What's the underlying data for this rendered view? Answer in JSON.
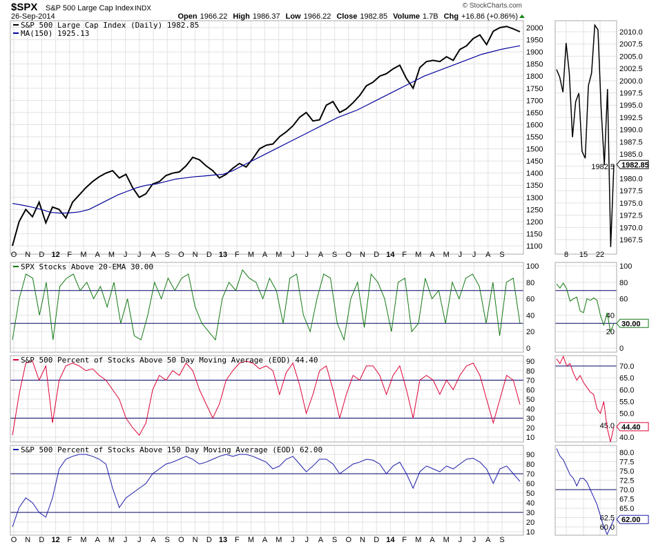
{
  "header": {
    "symbol": "$SPX",
    "name": "S&P 500 Large Cap Index",
    "exchange": "INDX",
    "date": "26-Sep-2014",
    "copyright": "© StockCharts.com",
    "open_label": "Open",
    "open": "1966.22",
    "high_label": "High",
    "high": "1986.37",
    "low_label": "Low",
    "low": "1966.22",
    "close_label": "Close",
    "close": "1982.85",
    "volume_label": "Volume",
    "volume": "1.7B",
    "chg_label": "Chg",
    "chg": "+16.86 (+0.86%)"
  },
  "colors": {
    "price": "#000000",
    "ma": "#000099",
    "ema20": "#117711",
    "pct50": "#dd0033",
    "pct150": "#1a1aaa",
    "ref_line": "#000066",
    "grid": "#e2e2e2"
  },
  "x_labels": [
    "O",
    "N",
    "D",
    "12",
    "F",
    "M",
    "A",
    "M",
    "J",
    "J",
    "A",
    "S",
    "O",
    "N",
    "D",
    "13",
    "F",
    "M",
    "A",
    "M",
    "J",
    "J",
    "A",
    "S",
    "O",
    "N",
    "D",
    "14",
    "F",
    "M",
    "A",
    "M",
    "J",
    "J",
    "A",
    "S"
  ],
  "zoom_x_labels": [
    "8",
    "15",
    "22"
  ],
  "chart_data": [
    {
      "type": "line",
      "legend": [
        "S&P 500 Large Cap Index (Daily) 1982.85",
        "MA(150) 1925.13"
      ],
      "y_ticks": [
        2000,
        1950,
        1900,
        1850,
        1800,
        1750,
        1700,
        1650,
        1600,
        1550,
        1500,
        1450,
        1400,
        1350,
        1300,
        1250,
        1200,
        1150,
        1100
      ],
      "ylim": [
        1100,
        2000
      ],
      "x_range": [
        "2011-10-03",
        "2014-09-26"
      ],
      "series": [
        {
          "name": "S&P 500 Large Cap Index (Daily)",
          "values": [
            1100,
            1200,
            1250,
            1220,
            1280,
            1195,
            1260,
            1250,
            1215,
            1280,
            1310,
            1340,
            1365,
            1385,
            1400,
            1410,
            1380,
            1395,
            1340,
            1300,
            1315,
            1355,
            1365,
            1390,
            1400,
            1405,
            1430,
            1465,
            1455,
            1430,
            1410,
            1380,
            1395,
            1420,
            1440,
            1425,
            1460,
            1500,
            1515,
            1520,
            1550,
            1570,
            1595,
            1630,
            1650,
            1615,
            1620,
            1680,
            1695,
            1650,
            1665,
            1690,
            1720,
            1760,
            1775,
            1800,
            1810,
            1830,
            1845,
            1790,
            1750,
            1835,
            1860,
            1865,
            1860,
            1880,
            1865,
            1910,
            1925,
            1955,
            1970,
            1930,
            1985,
            2000,
            2005,
            1995,
            1982.85
          ]
        },
        {
          "name": "MA(150)",
          "values": [
            1275,
            1268,
            1260,
            1250,
            1238,
            1235,
            1236,
            1240,
            1250,
            1270,
            1290,
            1310,
            1325,
            1340,
            1350,
            1355,
            1365,
            1375,
            1380,
            1385,
            1388,
            1392,
            1395,
            1410,
            1430,
            1450,
            1470,
            1490,
            1510,
            1530,
            1550,
            1570,
            1590,
            1610,
            1630,
            1645,
            1660,
            1680,
            1700,
            1720,
            1740,
            1760,
            1780,
            1800,
            1815,
            1830,
            1845,
            1860,
            1875,
            1890,
            1900,
            1910,
            1918,
            1925.13
          ]
        }
      ]
    },
    {
      "type": "line",
      "legend": [
        "SPX Stocks Above 20-EMA 30.00"
      ],
      "y_ticks": [
        100,
        80,
        60,
        40,
        20,
        0
      ],
      "ylim": [
        0,
        100
      ],
      "ref_lines": [
        70,
        30
      ],
      "series": [
        {
          "name": "SPX Stocks Above 20-EMA",
          "values": [
            10,
            60,
            90,
            85,
            40,
            80,
            10,
            75,
            85,
            90,
            70,
            80,
            60,
            75,
            50,
            80,
            30,
            60,
            15,
            10,
            40,
            80,
            60,
            85,
            70,
            85,
            90,
            50,
            30,
            20,
            10,
            60,
            80,
            70,
            95,
            85,
            80,
            60,
            85,
            70,
            30,
            85,
            90,
            40,
            20,
            60,
            90,
            85,
            30,
            10,
            60,
            80,
            25,
            90,
            80,
            60,
            20,
            80,
            85,
            20,
            30,
            85,
            60,
            70,
            30,
            80,
            60,
            85,
            90,
            75,
            30,
            80,
            15,
            80,
            85,
            30
          ]
        }
      ]
    },
    {
      "type": "line",
      "legend": [
        "S&P 500 Percent of Stocks Above 50 Day Moving Average (EOD) 44.40"
      ],
      "y_ticks": [
        90,
        80,
        70,
        60,
        50,
        40,
        30,
        20,
        10
      ],
      "ylim": [
        10,
        90
      ],
      "ref_lines": [
        70,
        30
      ],
      "series": [
        {
          "name": "S&P 500 Percent of Stocks Above 50 Day Moving Average (EOD)",
          "values": [
            12,
            55,
            88,
            90,
            70,
            85,
            25,
            70,
            85,
            88,
            85,
            80,
            82,
            75,
            70,
            60,
            50,
            30,
            20,
            12,
            25,
            60,
            75,
            70,
            80,
            75,
            88,
            80,
            60,
            45,
            30,
            45,
            70,
            80,
            88,
            90,
            88,
            82,
            85,
            80,
            55,
            78,
            88,
            65,
            35,
            55,
            80,
            85,
            60,
            30,
            55,
            75,
            70,
            85,
            85,
            75,
            55,
            75,
            85,
            60,
            30,
            70,
            75,
            70,
            55,
            70,
            60,
            75,
            85,
            88,
            75,
            50,
            25,
            50,
            75,
            70,
            44.4
          ]
        }
      ]
    },
    {
      "type": "line",
      "legend": [
        "S&P 500 Percent of Stocks Above 150 Day Moving Average (EOD) 62.00"
      ],
      "y_ticks": [
        90,
        80,
        70,
        60,
        50,
        40,
        30,
        20,
        10
      ],
      "ylim": [
        10,
        90
      ],
      "ref_lines": [
        70,
        30
      ],
      "series": [
        {
          "name": "S&P 500 Percent of Stocks Above 150 Day Moving Average (EOD)",
          "values": [
            15,
            35,
            45,
            40,
            30,
            25,
            45,
            75,
            85,
            88,
            90,
            90,
            88,
            85,
            80,
            55,
            35,
            45,
            50,
            55,
            60,
            70,
            75,
            80,
            82,
            85,
            88,
            85,
            80,
            82,
            85,
            88,
            90,
            88,
            90,
            90,
            88,
            85,
            82,
            75,
            78,
            85,
            88,
            80,
            72,
            78,
            85,
            85,
            80,
            70,
            75,
            80,
            82,
            85,
            84,
            80,
            70,
            78,
            82,
            70,
            55,
            72,
            78,
            75,
            72,
            78,
            75,
            80,
            85,
            86,
            82,
            75,
            60,
            75,
            78,
            70,
            62
          ]
        }
      ]
    },
    {
      "type": "line",
      "panel": "zoom-price",
      "y_ticks": [
        2010.0,
        2007.5,
        2005.0,
        2002.5,
        2000.0,
        1997.5,
        1995.0,
        1992.5,
        1990.0,
        1987.5,
        1985.0,
        1982.5,
        1980.0,
        1977.5,
        1975.0,
        1972.5,
        1970.0,
        1967.5
      ],
      "ylim": [
        1966,
        2012
      ],
      "last_label": "1982.85",
      "series": [
        {
          "values": [
            2002.28,
            2000.72,
            1997.65,
            2007.71,
            2001.54,
            1988.44,
            1995.69,
            1997.45,
            1985.54,
            1984.13,
            1998.98,
            2001.57,
            2011.36,
            2010.4,
            1994.29,
            1982.77,
            1998.3,
            1965.99,
            1982.85
          ]
        }
      ]
    },
    {
      "type": "line",
      "panel": "zoom-ema20",
      "y_ticks": [
        100,
        80,
        60,
        40,
        20,
        0
      ],
      "ylim": [
        0,
        100
      ],
      "ref_lines": [
        70,
        30
      ],
      "last_label": "30.00",
      "series": [
        {
          "values": [
            78,
            73,
            79,
            72,
            57,
            60,
            62,
            45,
            43,
            60,
            58,
            61,
            58,
            40,
            28,
            43,
            20,
            30
          ]
        }
      ]
    },
    {
      "type": "line",
      "panel": "zoom-pct50",
      "y_ticks": [
        70,
        65,
        60,
        55,
        50,
        45,
        40
      ],
      "ylim": [
        38,
        73
      ],
      "ref_lines": [
        70
      ],
      "last_label": "44.40",
      "series": [
        {
          "values": [
            73,
            71,
            74,
            70,
            71,
            67,
            64,
            66,
            63,
            61,
            59,
            58,
            52,
            50,
            55,
            44,
            38,
            44.4
          ]
        }
      ]
    },
    {
      "type": "line",
      "panel": "zoom-pct150",
      "y_ticks": [
        80.0,
        77.5,
        75.0,
        72.5,
        70.0,
        67.5,
        65.0,
        62.5,
        60.0
      ],
      "ylim": [
        58,
        81
      ],
      "ref_lines": [
        70
      ],
      "last_label": "62.00",
      "series": [
        {
          "values": [
            81,
            79,
            78,
            76,
            74,
            73,
            71,
            73,
            73,
            72,
            70,
            68,
            66,
            63,
            60,
            58,
            60,
            62
          ]
        }
      ]
    }
  ]
}
